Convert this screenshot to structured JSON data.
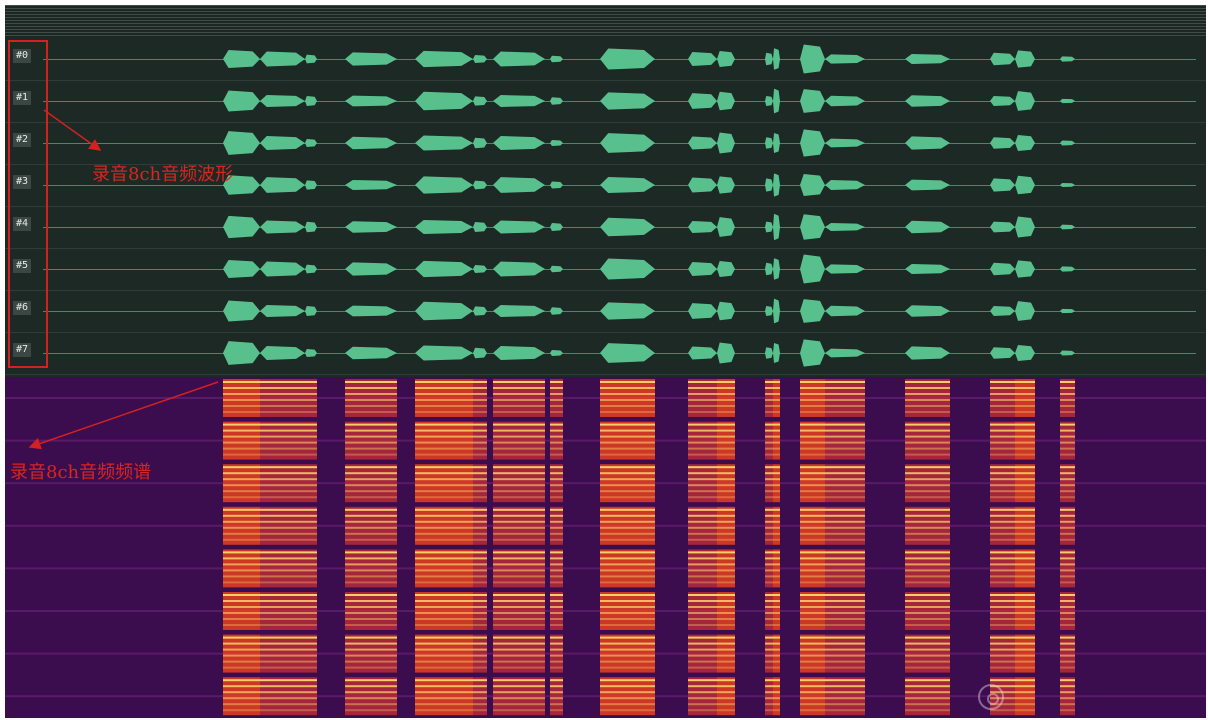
{
  "channels": [
    "#0",
    "#1",
    "#2",
    "#3",
    "#4",
    "#5",
    "#6",
    "#7"
  ],
  "annotations": {
    "waveform_label": "录音8ch音频波形",
    "spectrum_label": "录音8ch音频频谱"
  },
  "colors": {
    "waveform": "#58c08d",
    "waveform_bg": "#1d2925",
    "spectrum_bg": "#3b0c4e",
    "annotation": "#d32020"
  },
  "icons": [
    "zoom-icon"
  ]
}
